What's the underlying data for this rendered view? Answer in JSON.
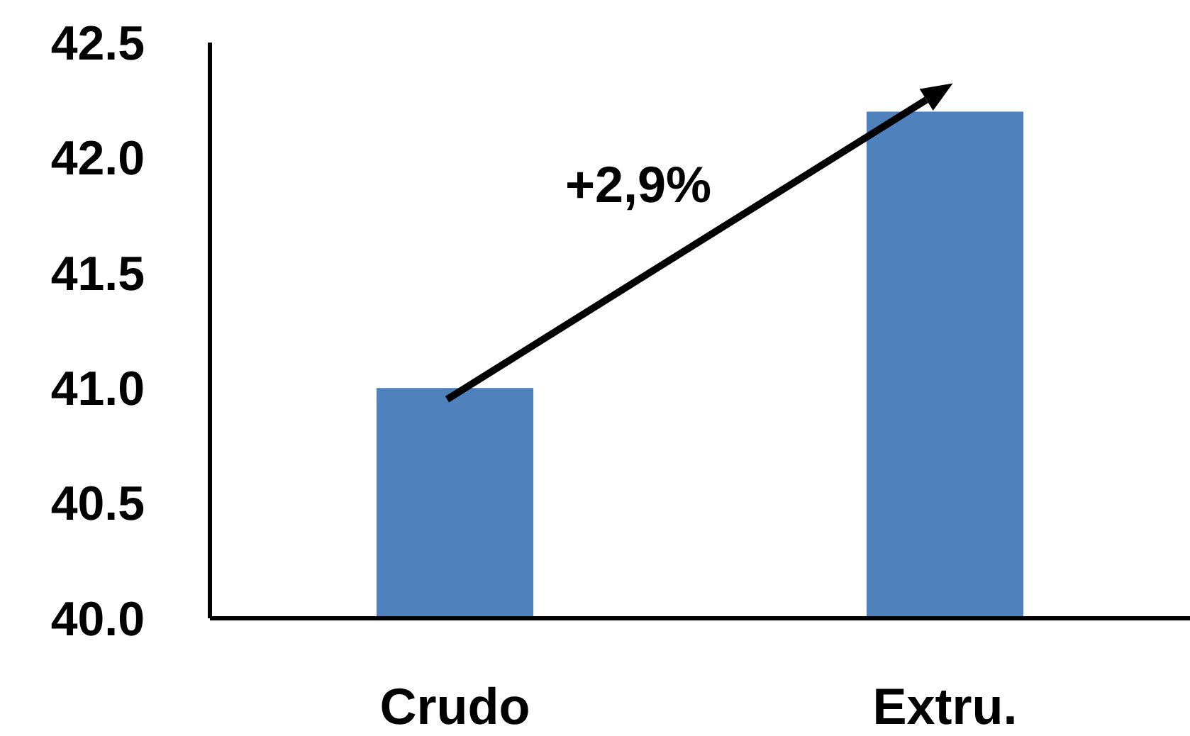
{
  "chart_data": {
    "type": "bar",
    "categories": [
      "Crudo",
      "Extru."
    ],
    "values": [
      41.0,
      42.2
    ],
    "color": "#4f81bd",
    "ylim": [
      40,
      42.5
    ],
    "yticks": [
      {
        "value": 40,
        "label": "40.0"
      },
      {
        "value": 40.5,
        "label": "40.5"
      },
      {
        "value": 41,
        "label": "41.0"
      },
      {
        "value": 41.5,
        "label": "41.5"
      },
      {
        "value": 42,
        "label": "42.0"
      },
      {
        "value": 42.5,
        "label": "42.5"
      }
    ],
    "annotations": [
      "+2,9%"
    ],
    "grid": false
  }
}
